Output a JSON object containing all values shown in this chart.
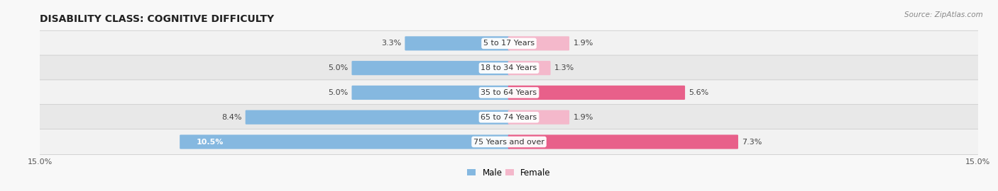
{
  "title": "DISABILITY CLASS: COGNITIVE DIFFICULTY",
  "source": "Source: ZipAtlas.com",
  "categories": [
    "5 to 17 Years",
    "18 to 34 Years",
    "35 to 64 Years",
    "65 to 74 Years",
    "75 Years and over"
  ],
  "male_values": [
    3.3,
    5.0,
    5.0,
    8.4,
    10.5
  ],
  "female_values": [
    1.9,
    1.3,
    5.6,
    1.9,
    7.3
  ],
  "male_color": "#85b8e0",
  "female_color_small": "#f4b8cb",
  "female_color_large": "#e8608a",
  "female_threshold": 5.0,
  "row_colors": [
    "#f2f2f2",
    "#e8e8e8"
  ],
  "xlim": 15.0,
  "bar_height": 0.52,
  "title_fontsize": 10,
  "label_fontsize": 8,
  "tick_fontsize": 8,
  "legend_fontsize": 8.5,
  "outside_label_color": "#444444",
  "inside_label_color": "#ffffff"
}
